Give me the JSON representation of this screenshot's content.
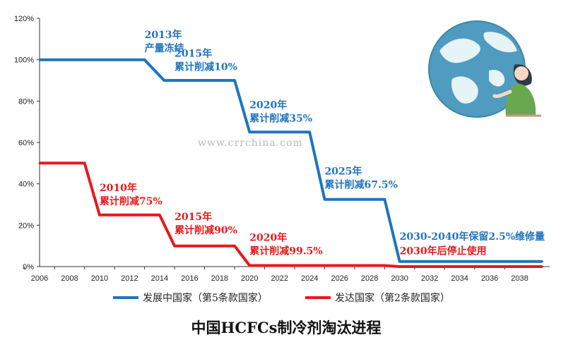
{
  "chart_data": {
    "type": "line",
    "title": "中国HCFCs制冷剂淘汰进程",
    "x": [
      2006,
      2008,
      2010,
      2012,
      2014,
      2016,
      2018,
      2020,
      2022,
      2024,
      2026,
      2028,
      2030,
      2032,
      2034,
      2036,
      2038
    ],
    "x_ticks": [
      "2006",
      "2008",
      "2010",
      "2012",
      "2014",
      "2016",
      "2018",
      "2020",
      "2022",
      "2024",
      "2026",
      "2028",
      "2030",
      "2032",
      "2034",
      "2036",
      "2038"
    ],
    "y_ticks": [
      "0%",
      "20%",
      "40%",
      "60%",
      "80%",
      "100%",
      "120%"
    ],
    "ylim": [
      0,
      120
    ],
    "xlim": [
      2006,
      2040
    ],
    "series": [
      {
        "name": "发展中国家（第5条款国家）",
        "color": "#1f74c0",
        "points": [
          [
            2006,
            100
          ],
          [
            2013,
            100
          ],
          [
            2014.3,
            90
          ],
          [
            2019,
            90
          ],
          [
            2020,
            65
          ],
          [
            2024,
            65
          ],
          [
            2025,
            32.5
          ],
          [
            2029,
            32.5
          ],
          [
            2030,
            2.5
          ],
          [
            2039.5,
            2.5
          ]
        ]
      },
      {
        "name": "发达国家（第2条款国家）",
        "color": "#e8191b",
        "points": [
          [
            2006,
            50
          ],
          [
            2009,
            50
          ],
          [
            2010,
            25
          ],
          [
            2014,
            25
          ],
          [
            2015,
            10
          ],
          [
            2019,
            10
          ],
          [
            2020,
            0.5
          ],
          [
            2029,
            0.5
          ],
          [
            2030,
            0
          ],
          [
            2039.5,
            0
          ]
        ]
      }
    ],
    "annotations": [
      {
        "lines": [
          "2013年",
          "产量冻结"
        ],
        "series": 0,
        "x": 2013,
        "y": 104
      },
      {
        "lines": [
          "2015年",
          "累计削减10%"
        ],
        "series": 0,
        "x": 2015,
        "y": 95
      },
      {
        "lines": [
          "2020年",
          "累计削减35%"
        ],
        "series": 0,
        "x": 2020,
        "y": 70
      },
      {
        "lines": [
          "2025年",
          "累计削减67.5%"
        ],
        "series": 0,
        "x": 2025,
        "y": 38
      },
      {
        "lines": [
          "2030-2040年保留2.5%维修量"
        ],
        "series": 0,
        "x": 2030,
        "y": 13
      },
      {
        "lines": [
          "2010年",
          "累计削减75%"
        ],
        "series": 1,
        "x": 2010,
        "y": 30
      },
      {
        "lines": [
          "2015年",
          "累计削减90%"
        ],
        "series": 1,
        "x": 2015,
        "y": 16
      },
      {
        "lines": [
          "2020年",
          "累计削减99.5%"
        ],
        "series": 1,
        "x": 2020,
        "y": 6
      },
      {
        "lines": [
          "2030年后停止使用"
        ],
        "series": 1,
        "x": 2030,
        "y": 6
      }
    ],
    "watermark": "www.crrchina.com",
    "grid": false,
    "legend_position": "bottom"
  }
}
